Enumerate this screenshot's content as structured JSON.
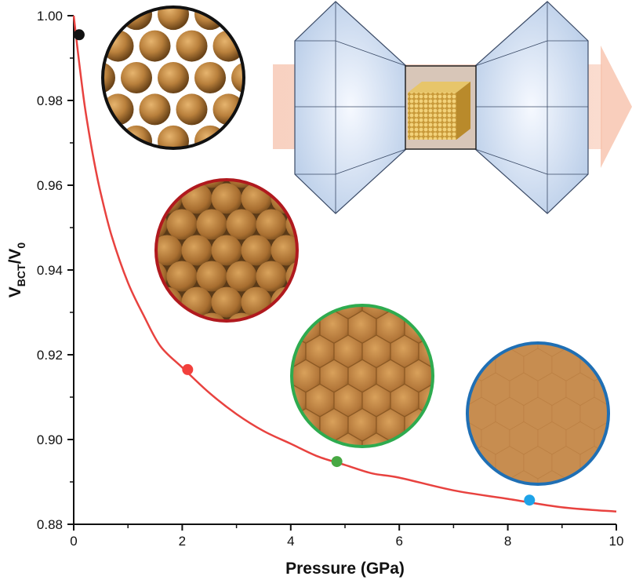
{
  "chart_data": {
    "type": "line",
    "title": "",
    "xlabel": "Pressure (GPa)",
    "ylabel": {
      "main": "V",
      "sub": "BCT",
      "sep": "/V",
      "sub2": "0"
    },
    "xlim": [
      0,
      10
    ],
    "ylim": [
      0.88,
      1.0
    ],
    "xticks": [
      0,
      2,
      4,
      6,
      8,
      10
    ],
    "yticks": [
      0.88,
      0.9,
      0.92,
      0.94,
      0.96,
      0.98,
      1.0
    ],
    "xtick_labels": [
      "0",
      "2",
      "4",
      "6",
      "8",
      "10"
    ],
    "ytick_labels": [
      "0.88",
      "0.90",
      "0.92",
      "0.94",
      "0.96",
      "0.98",
      "1.00"
    ],
    "grid": false,
    "series": [
      {
        "color": "#e8423f",
        "x": [
          0.0,
          0.1,
          0.2,
          0.3,
          0.4,
          0.5,
          0.7,
          1.0,
          1.3,
          1.6,
          2.0,
          2.5,
          3.0,
          3.5,
          4.0,
          4.5,
          5.0,
          5.5,
          6.0,
          7.0,
          8.0,
          9.0,
          10.0
        ],
        "y": [
          1.0,
          0.989,
          0.979,
          0.971,
          0.964,
          0.958,
          0.948,
          0.937,
          0.929,
          0.922,
          0.917,
          0.911,
          0.906,
          0.902,
          0.899,
          0.896,
          0.894,
          0.892,
          0.891,
          0.888,
          0.886,
          0.884,
          0.883
        ]
      }
    ],
    "points": [
      {
        "x": 0.1,
        "y": 0.9955,
        "color": "#111111"
      },
      {
        "x": 2.1,
        "y": 0.9165,
        "color": "#f2403c"
      },
      {
        "x": 4.85,
        "y": 0.8948,
        "color": "#47a843"
      },
      {
        "x": 8.4,
        "y": 0.8857,
        "color": "#1ea3e8"
      }
    ],
    "insets": [
      {
        "border": "#111111",
        "packing": "sparse"
      },
      {
        "border": "#b0191e",
        "packing": "close"
      },
      {
        "border": "#2eab4f",
        "packing": "faceted"
      },
      {
        "border": "#1f6fb4",
        "packing": "merged"
      }
    ]
  }
}
